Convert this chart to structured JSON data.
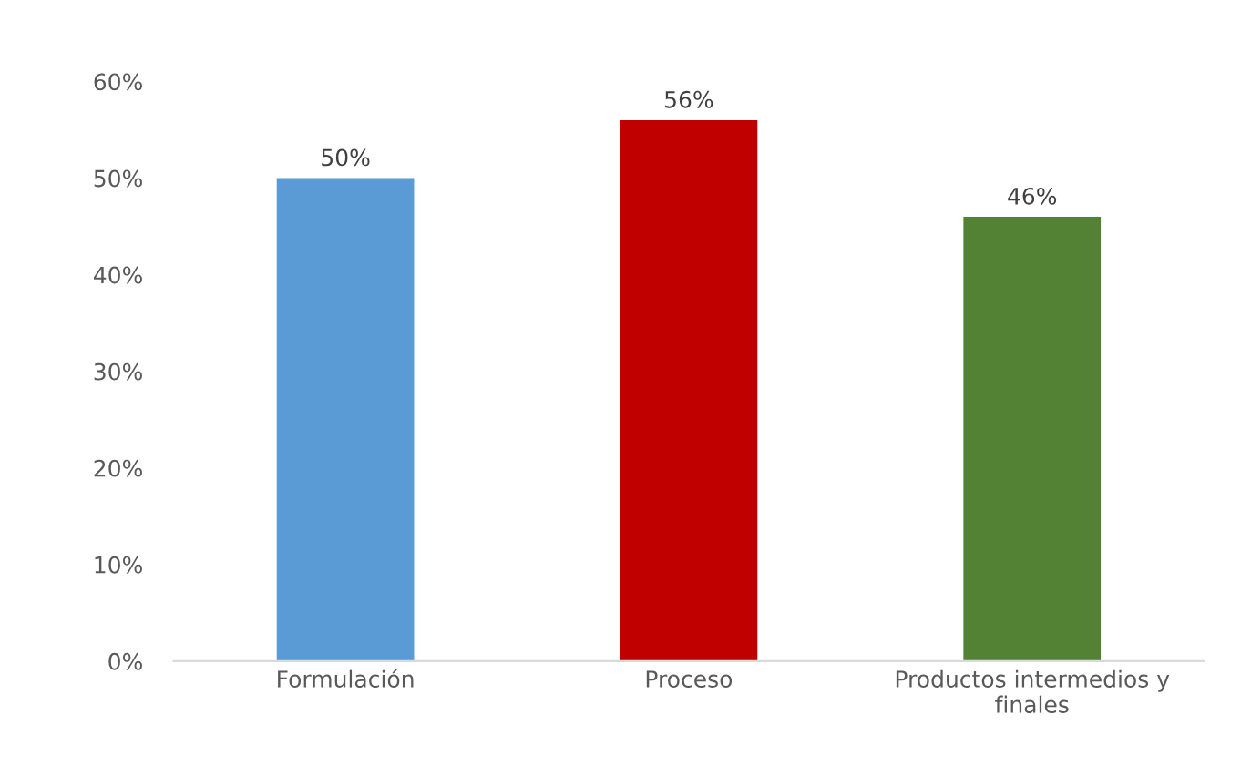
{
  "chart_data": {
    "type": "bar",
    "categories": [
      "Formulación",
      "Proceso",
      "Productos intermedios y\nfinales"
    ],
    "values": [
      50,
      56,
      46
    ],
    "colors": [
      "#5b9bd5",
      "#c00000",
      "#548235"
    ],
    "value_labels": [
      "50%",
      "56%",
      "46%"
    ],
    "ylim": [
      0,
      60
    ],
    "yticks": [
      {
        "value": 0,
        "label": "0%"
      },
      {
        "value": 10,
        "label": "10%"
      },
      {
        "value": 20,
        "label": "20%"
      },
      {
        "value": 30,
        "label": "30%"
      },
      {
        "value": 40,
        "label": "40%"
      },
      {
        "value": 50,
        "label": "50%"
      },
      {
        "value": 60,
        "label": "60%"
      }
    ],
    "grid": false,
    "legend": false
  }
}
